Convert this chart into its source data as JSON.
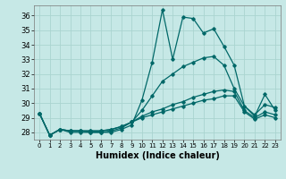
{
  "xlabel": "Humidex (Indice chaleur)",
  "xlim": [
    -0.5,
    23.5
  ],
  "ylim": [
    27.5,
    36.7
  ],
  "yticks": [
    28,
    29,
    30,
    31,
    32,
    33,
    34,
    35,
    36
  ],
  "xticks": [
    0,
    1,
    2,
    3,
    4,
    5,
    6,
    7,
    8,
    9,
    10,
    11,
    12,
    13,
    14,
    15,
    16,
    17,
    18,
    19,
    20,
    21,
    22,
    23
  ],
  "bg_color": "#c6e8e6",
  "grid_color": "#aad4d0",
  "line_color": "#006868",
  "series": [
    [
      29.3,
      27.8,
      28.2,
      28.0,
      28.0,
      28.0,
      28.0,
      28.0,
      28.2,
      28.5,
      30.2,
      32.8,
      36.4,
      33.0,
      35.9,
      35.8,
      34.8,
      35.1,
      33.9,
      32.6,
      29.8,
      29.1,
      30.6,
      29.5
    ],
    [
      29.3,
      27.8,
      28.2,
      28.1,
      28.1,
      28.0,
      28.0,
      28.1,
      28.3,
      28.7,
      29.5,
      30.5,
      31.5,
      32.0,
      32.5,
      32.8,
      33.1,
      33.2,
      32.6,
      31.0,
      29.8,
      29.2,
      29.9,
      29.7
    ],
    [
      29.3,
      27.8,
      28.2,
      28.1,
      28.1,
      28.1,
      28.1,
      28.2,
      28.4,
      28.7,
      29.1,
      29.4,
      29.6,
      29.9,
      30.1,
      30.4,
      30.6,
      30.8,
      30.9,
      30.8,
      29.5,
      29.0,
      29.4,
      29.2
    ],
    [
      29.3,
      27.8,
      28.2,
      28.1,
      28.1,
      28.1,
      28.1,
      28.2,
      28.4,
      28.7,
      29.0,
      29.2,
      29.4,
      29.6,
      29.8,
      30.0,
      30.2,
      30.3,
      30.5,
      30.5,
      29.4,
      28.9,
      29.2,
      29.0
    ]
  ]
}
